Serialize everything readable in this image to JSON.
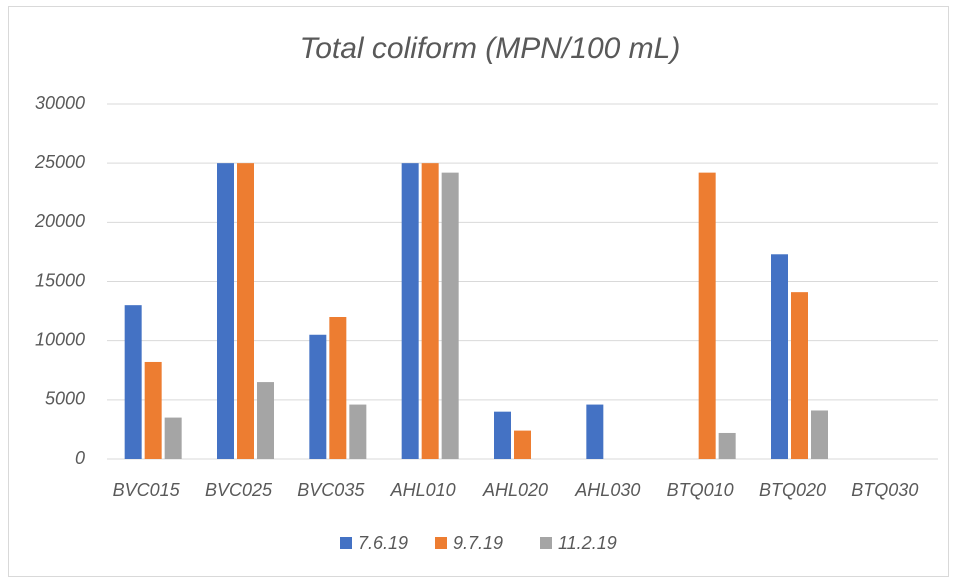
{
  "chart_data": {
    "type": "bar",
    "title": "Total coliform (MPN/100 mL)",
    "categories": [
      "BVC015",
      "BVC025",
      "BVC035",
      "AHL010",
      "AHL020",
      "AHL030",
      "BTQ010",
      "BTQ020",
      "BTQ030"
    ],
    "series": [
      {
        "name": "7.6.19",
        "color": "#4472c4",
        "values": [
          13000,
          25000,
          10500,
          25000,
          4000,
          4600,
          null,
          17300,
          null
        ]
      },
      {
        "name": "9.7.19",
        "color": "#ed7d31",
        "values": [
          8200,
          25000,
          12000,
          25000,
          2400,
          null,
          24200,
          14100,
          null
        ]
      },
      {
        "name": "11.2.19",
        "color": "#a5a5a5",
        "values": [
          3500,
          6500,
          4600,
          24200,
          null,
          null,
          2200,
          4100,
          null
        ]
      }
    ],
    "ylim": [
      0,
      30000
    ],
    "yticks": [
      0,
      5000,
      10000,
      15000,
      20000,
      25000,
      30000
    ],
    "grid": true,
    "legend": "bottom"
  }
}
